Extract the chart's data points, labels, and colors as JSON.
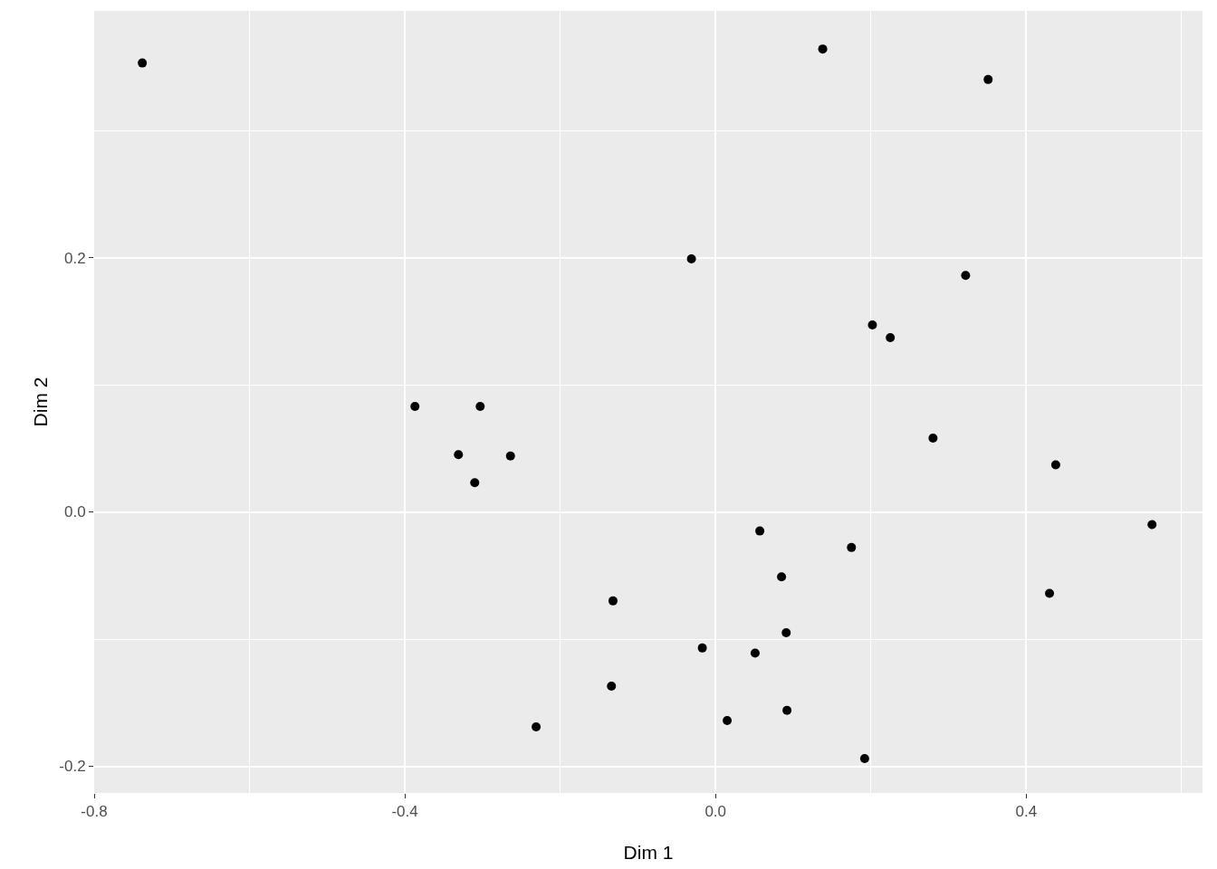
{
  "chart_data": {
    "type": "scatter",
    "xlabel": "Dim 1",
    "ylabel": "Dim 2",
    "x": [
      -0.738,
      0.138,
      0.351,
      -0.031,
      0.322,
      0.202,
      0.225,
      -0.387,
      -0.303,
      -0.331,
      -0.264,
      -0.31,
      0.28,
      0.438,
      0.562,
      0.057,
      0.175,
      0.085,
      0.43,
      -0.132,
      0.091,
      -0.017,
      0.051,
      -0.134,
      0.092,
      -0.231,
      0.015,
      0.192
    ],
    "series": [
      {
        "color": "#000000",
        "values": [
          0.353,
          0.364,
          0.34,
          0.199,
          0.186,
          0.147,
          0.137,
          0.083,
          0.083,
          0.045,
          0.044,
          0.023,
          0.058,
          0.037,
          -0.01,
          -0.015,
          -0.028,
          -0.051,
          -0.064,
          -0.07,
          -0.095,
          -0.107,
          -0.111,
          -0.137,
          -0.156,
          -0.169,
          -0.164,
          -0.194
        ]
      }
    ],
    "xlim": [
      -0.8,
      0.627
    ],
    "ylim": [
      -0.221,
      0.394
    ],
    "xticks": [
      {
        "value": -0.8,
        "label": "-0.8"
      },
      {
        "value": -0.4,
        "label": "-0.4"
      },
      {
        "value": 0,
        "label": "0.0"
      },
      {
        "value": 0.4,
        "label": "0.4"
      }
    ],
    "yticks": [
      {
        "value": -0.2,
        "label": "-0.2"
      },
      {
        "value": 0,
        "label": "0.0"
      },
      {
        "value": 0.2,
        "label": "0.2"
      }
    ],
    "grid": true,
    "marker": "circle"
  }
}
